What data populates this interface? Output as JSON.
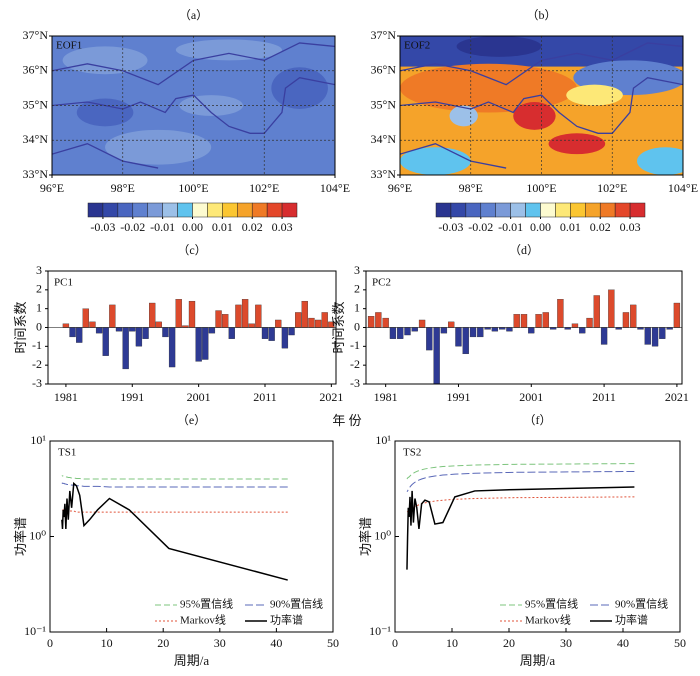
{
  "chart_data": [
    {
      "type": "map",
      "panel": "（a）",
      "label": "EOF1",
      "xlim": [
        96,
        104
      ],
      "ylim": [
        33,
        37
      ],
      "xticks": [
        {
          "value": 96,
          "label": "96°E"
        },
        {
          "value": 98,
          "label": "98°E"
        },
        {
          "value": 100,
          "label": "100°E"
        },
        {
          "value": 102,
          "label": "102°E"
        },
        {
          "value": 104,
          "label": "104°E"
        }
      ],
      "yticks": [
        {
          "value": 33,
          "label": "33°N"
        },
        {
          "value": 34,
          "label": "34°N"
        },
        {
          "value": 35,
          "label": "35°N"
        },
        {
          "value": 36,
          "label": "36°N"
        },
        {
          "value": 37,
          "label": "37°N"
        }
      ],
      "grid": true,
      "colorbar": {
        "lim": [
          -0.035,
          0.035
        ],
        "ticks": [
          -0.03,
          -0.02,
          -0.01,
          {
            "value": 0,
            "label": "0.00"
          },
          0.01,
          0.02,
          0.03
        ],
        "colors": [
          "#2a3590",
          "#3448a8",
          "#4a66c0",
          "#5f80cf",
          "#7b9ad8",
          "#9cc0e8",
          "#5fc3ee",
          "#fdfbd0",
          "#fde877",
          "#fbc631",
          "#f5a32a",
          "#ef7a26",
          "#e4472a",
          "#d72d2f"
        ]
      }
    },
    {
      "type": "map",
      "panel": "（b）",
      "label": "EOF2",
      "xlim": [
        96,
        104
      ],
      "ylim": [
        33,
        37
      ],
      "xticks": [
        {
          "value": 96,
          "label": "96°E"
        },
        {
          "value": 98,
          "label": "98°E"
        },
        {
          "value": 100,
          "label": "100°E"
        },
        {
          "value": 102,
          "label": "102°E"
        },
        {
          "value": 104,
          "label": "104°E"
        }
      ],
      "yticks": [
        {
          "value": 33,
          "label": "33°N"
        },
        {
          "value": 34,
          "label": "34°N"
        },
        {
          "value": 35,
          "label": "35°N"
        },
        {
          "value": 36,
          "label": "36°N"
        },
        {
          "value": 37,
          "label": "37°N"
        }
      ],
      "grid": true,
      "colorbar": {
        "lim": [
          -0.035,
          0.035
        ],
        "ticks": [
          -0.03,
          -0.02,
          -0.01,
          {
            "value": 0,
            "label": "0.00"
          },
          0.01,
          0.02,
          0.03
        ],
        "colors": [
          "#2a3590",
          "#3448a8",
          "#4a66c0",
          "#5f80cf",
          "#7b9ad8",
          "#9cc0e8",
          "#5fc3ee",
          "#fdfbd0",
          "#fde877",
          "#fbc631",
          "#f5a32a",
          "#ef7a26",
          "#e4472a",
          "#d72d2f"
        ]
      }
    },
    {
      "type": "bar",
      "panel": "（c）",
      "label": "PC1",
      "ylabel": "时间系数",
      "x": [
        1979,
        1980,
        1981,
        1982,
        1983,
        1984,
        1985,
        1986,
        1987,
        1988,
        1989,
        1990,
        1991,
        1992,
        1993,
        1994,
        1995,
        1996,
        1997,
        1998,
        1999,
        2000,
        2001,
        2002,
        2003,
        2004,
        2005,
        2006,
        2007,
        2008,
        2009,
        2010,
        2011,
        2012,
        2013,
        2014,
        2015,
        2016,
        2017,
        2018,
        2019,
        2020,
        2021
      ],
      "values": [
        0.0,
        0.0,
        0.2,
        -0.5,
        -0.8,
        1.0,
        0.3,
        -0.3,
        -1.5,
        1.2,
        -0.2,
        -2.2,
        -0.2,
        -1.0,
        -0.6,
        1.3,
        0.3,
        -0.5,
        -2.1,
        1.5,
        0.1,
        1.4,
        -1.8,
        -1.7,
        -0.3,
        0.9,
        0.7,
        -0.6,
        1.2,
        1.5,
        0.2,
        1.2,
        -0.6,
        -0.7,
        0.4,
        -1.1,
        -0.4,
        0.8,
        1.4,
        0.5,
        0.4,
        0.8,
        0.3
      ],
      "positive_color": "#dc4a2c",
      "negative_color": "#2e3a94",
      "xlim": [
        1978.3,
        2021.7
      ],
      "xticks": [
        1981,
        1991,
        2001,
        2011,
        2021
      ],
      "ylim": [
        -3,
        3
      ],
      "yticks": [
        -3,
        -2,
        -1,
        0,
        1,
        2,
        3
      ]
    },
    {
      "type": "bar",
      "panel": "（d）",
      "label": "PC2",
      "ylabel": "时间系数",
      "x": [
        1979,
        1980,
        1981,
        1982,
        1983,
        1984,
        1985,
        1986,
        1987,
        1988,
        1989,
        1990,
        1991,
        1992,
        1993,
        1994,
        1995,
        1996,
        1997,
        1998,
        1999,
        2000,
        2001,
        2002,
        2003,
        2004,
        2005,
        2006,
        2007,
        2008,
        2009,
        2010,
        2011,
        2012,
        2013,
        2014,
        2015,
        2016,
        2017,
        2018,
        2019,
        2020,
        2021
      ],
      "values": [
        0.6,
        0.8,
        0.5,
        -0.6,
        -0.6,
        -0.4,
        -0.2,
        0.4,
        -1.2,
        -3.0,
        -0.3,
        0.3,
        -1.0,
        -1.4,
        -0.5,
        -0.5,
        -0.1,
        -0.2,
        -0.1,
        -0.2,
        0.7,
        0.7,
        -0.3,
        0.7,
        0.8,
        -0.1,
        1.5,
        -0.1,
        0.2,
        -0.3,
        0.5,
        1.7,
        -0.9,
        2.0,
        -0.1,
        0.8,
        1.2,
        -0.1,
        -0.9,
        -1.0,
        -0.6,
        -0.1,
        1.3
      ],
      "positive_color": "#dc4a2c",
      "negative_color": "#2e3a94",
      "xlim": [
        1978.3,
        2021.7
      ],
      "xticks": [
        1981,
        1991,
        2001,
        2011,
        2021
      ],
      "ylim": [
        -3,
        3
      ],
      "yticks": [
        -3,
        -2,
        -1,
        0,
        1,
        2,
        3
      ]
    },
    {
      "type": "line",
      "panel": "（e）",
      "label": "TS1",
      "xlabel": "周期/a",
      "ylabel": "功率谱",
      "log_y": true,
      "legend": "lower right",
      "x": [
        42,
        21,
        14,
        10.5,
        8.4,
        7,
        6,
        5.25,
        4.67,
        4.2,
        3.82,
        3.5,
        3.23,
        3,
        2.8,
        2.63,
        2.47,
        2.33,
        2.21,
        2.1
      ],
      "xlim": [
        0,
        50
      ],
      "xticks": [
        0,
        10,
        20,
        30,
        40,
        50
      ],
      "ylim": [
        0.1,
        10
      ],
      "yticks": [
        {
          "value": 0.1,
          "label": "10⁻¹"
        },
        {
          "value": 1,
          "label": "10⁰"
        },
        {
          "value": 10,
          "label": "10¹"
        }
      ],
      "series": [
        {
          "name": "95%置信线",
          "color": "#7cc47c",
          "dash": "6,3",
          "values": [
            4.0,
            4.0,
            4.0,
            4.0,
            4.0,
            4.0,
            4.0,
            4.05,
            4.05,
            4.1,
            4.1,
            4.15,
            4.15,
            4.2,
            4.2,
            4.25,
            4.25,
            4.3,
            4.3,
            4.35
          ]
        },
        {
          "name": "90%置信线",
          "color": "#5a68b8",
          "dash": "8,3",
          "values": [
            3.3,
            3.3,
            3.3,
            3.3,
            3.35,
            3.35,
            3.35,
            3.4,
            3.4,
            3.45,
            3.45,
            3.5,
            3.5,
            3.5,
            3.55,
            3.55,
            3.6,
            3.6,
            3.6,
            3.65
          ]
        },
        {
          "name": "Markov线",
          "color": "#e0533a",
          "dash": "2,2",
          "values": [
            1.8,
            1.8,
            1.8,
            1.8,
            1.8,
            1.8,
            1.8,
            1.8,
            1.8,
            1.85,
            1.85,
            1.85,
            1.85,
            1.9,
            1.9,
            1.9,
            1.9,
            1.9,
            1.9,
            1.95
          ]
        },
        {
          "name": "功率谱",
          "color": "#000000",
          "dash": "none",
          "values": [
            0.35,
            0.75,
            1.9,
            2.5,
            1.9,
            1.5,
            1.3,
            2.7,
            3.4,
            3.6,
            2.0,
            3.0,
            1.5,
            2.5,
            1.2,
            2.2,
            1.6,
            1.9,
            1.2,
            1.5
          ]
        }
      ]
    },
    {
      "type": "line",
      "panel": "（f）",
      "label": "TS2",
      "xlabel": "周期/a",
      "ylabel": "功率谱",
      "log_y": true,
      "legend": "lower right",
      "x": [
        42,
        21,
        14,
        10.5,
        8.4,
        7,
        6,
        5.25,
        4.67,
        4.2,
        3.82,
        3.5,
        3.23,
        3,
        2.8,
        2.63,
        2.47,
        2.33,
        2.21,
        2.1
      ],
      "xlim": [
        0,
        50
      ],
      "xticks": [
        0,
        10,
        20,
        30,
        40,
        50
      ],
      "ylim": [
        0.1,
        10
      ],
      "yticks": [
        {
          "value": 0.1,
          "label": "10⁻¹"
        },
        {
          "value": 1,
          "label": "10⁰"
        },
        {
          "value": 10,
          "label": "10¹"
        }
      ],
      "series": [
        {
          "name": "95%置信线",
          "color": "#7cc47c",
          "dash": "6,3",
          "values": [
            5.8,
            5.7,
            5.6,
            5.5,
            5.4,
            5.3,
            5.2,
            5.1,
            5.0,
            4.9,
            4.8,
            4.7,
            4.6,
            4.5,
            4.4,
            4.3,
            4.2,
            4.15,
            4.1,
            4.0
          ]
        },
        {
          "name": "90%置信线",
          "color": "#5a68b8",
          "dash": "8,3",
          "values": [
            4.8,
            4.7,
            4.6,
            4.5,
            4.4,
            4.3,
            4.2,
            4.1,
            4.0,
            3.9,
            3.8,
            3.7,
            3.6,
            3.5,
            3.4,
            3.3,
            3.2,
            3.1,
            3.0,
            2.95
          ]
        },
        {
          "name": "Markov线",
          "color": "#e0533a",
          "dash": "2,2",
          "values": [
            2.6,
            2.55,
            2.5,
            2.45,
            2.4,
            2.35,
            2.3,
            2.25,
            2.2,
            2.15,
            2.1,
            2.05,
            2.0,
            1.98,
            1.95,
            1.9,
            1.88,
            1.85,
            1.82,
            1.8
          ]
        },
        {
          "name": "功率谱",
          "color": "#000000",
          "dash": "none",
          "values": [
            3.3,
            3.1,
            3.0,
            2.6,
            1.4,
            1.35,
            2.3,
            2.4,
            2.2,
            1.2,
            2.0,
            2.5,
            1.4,
            3.0,
            1.3,
            2.6,
            1.6,
            2.0,
            1.0,
            0.45
          ]
        }
      ]
    }
  ],
  "bar_xlabel": "年 份"
}
